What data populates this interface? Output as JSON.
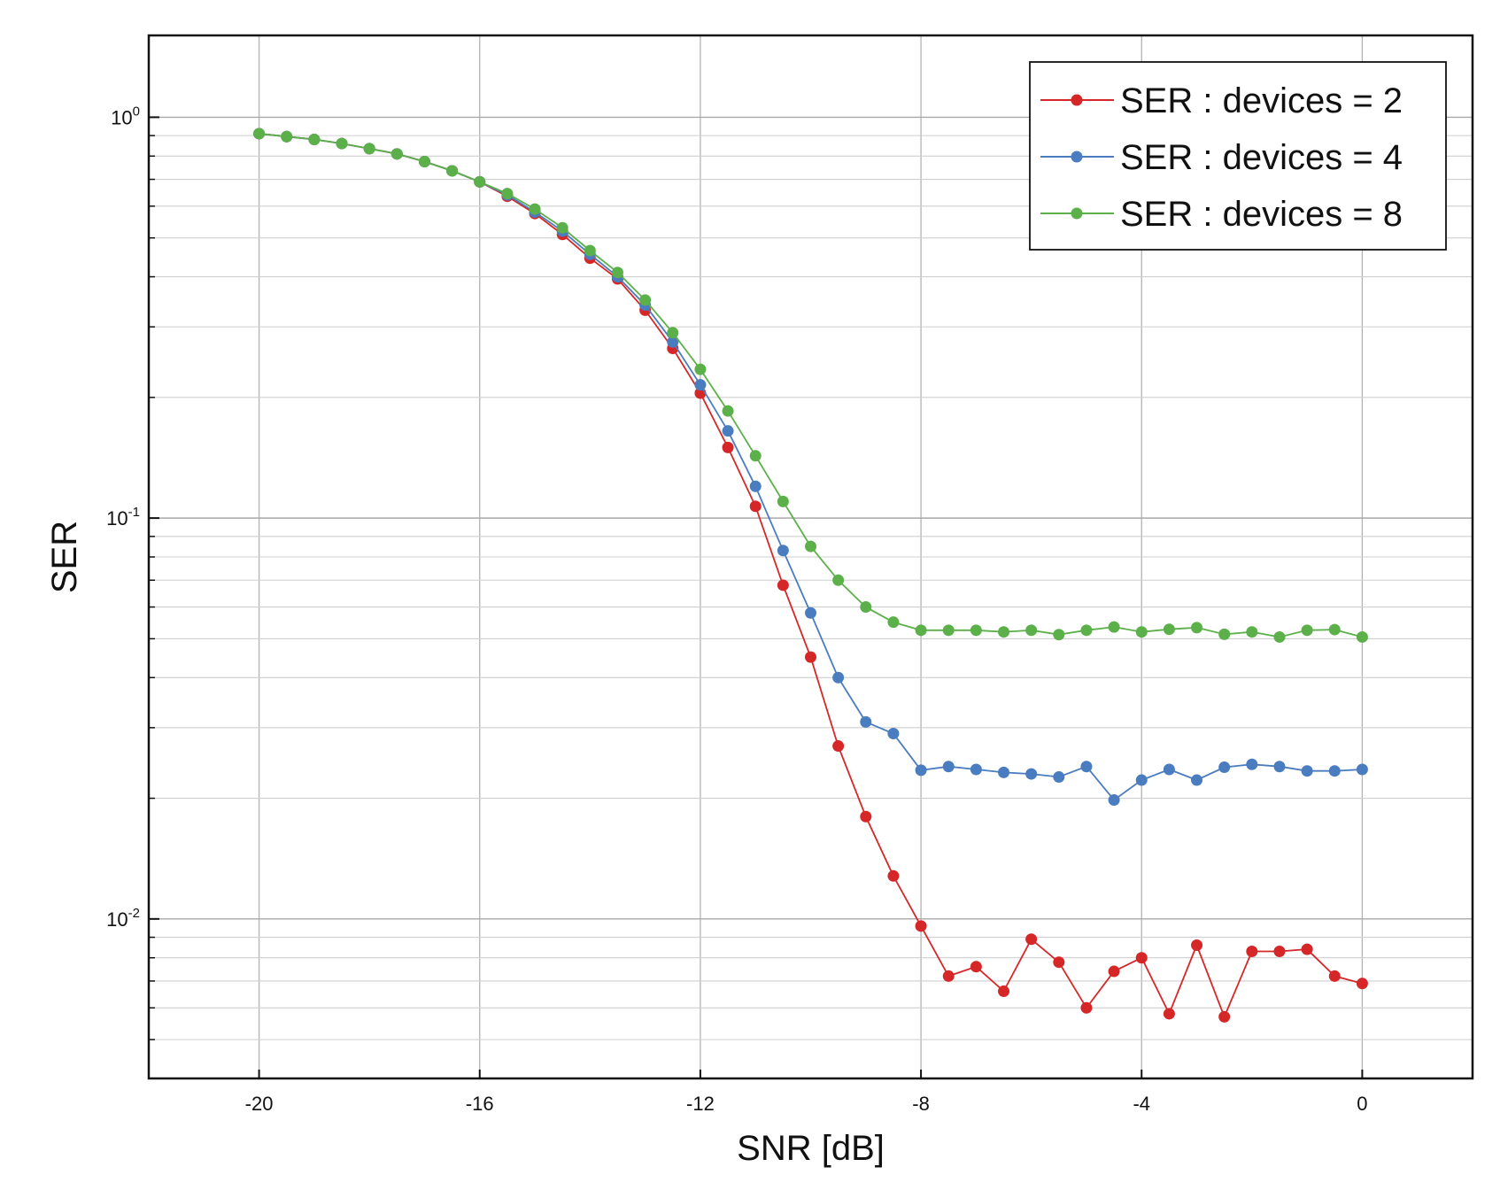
{
  "chart_data": {
    "type": "line",
    "title": "",
    "xlabel": "SNR [dB]",
    "ylabel": "SER",
    "yscale": "log",
    "xlim": [
      -22,
      2
    ],
    "ylim": [
      0.004,
      1.6
    ],
    "grid": true,
    "legend_position": "top-right",
    "x_ticks": [
      -20,
      -16,
      -12,
      -8,
      -4,
      0
    ],
    "x_tick_labels": [
      "-20",
      "-16",
      "-12",
      "-8",
      "-4",
      "0"
    ],
    "y_ticks": [
      1,
      0.1,
      0.01
    ],
    "y_tick_labels": [
      {
        "base": "10",
        "exp": "0"
      },
      {
        "base": "10",
        "exp": "-1"
      },
      {
        "base": "10",
        "exp": "-2"
      }
    ],
    "x": [
      -20,
      -19.5,
      -19,
      -18.5,
      -18,
      -17.5,
      -17,
      -16.5,
      -16,
      -15.5,
      -15,
      -14.5,
      -14,
      -13.5,
      -13,
      -12.5,
      -12,
      -11.5,
      -11,
      -10.5,
      -10,
      -9.5,
      -9,
      -8.5,
      -8,
      -7.5,
      -7,
      -6.5,
      -6,
      -5.5,
      -5,
      -4.5,
      -4,
      -3.5,
      -3,
      -2.5,
      -2,
      -1.5,
      -1,
      -0.5,
      0
    ],
    "series": [
      {
        "name": "SER : devices = 2",
        "color": "#d62728",
        "values": [
          0.91,
          0.895,
          0.88,
          0.86,
          0.835,
          0.81,
          0.775,
          0.735,
          0.69,
          0.635,
          0.575,
          0.51,
          0.445,
          0.395,
          0.33,
          0.265,
          0.205,
          0.15,
          0.107,
          0.068,
          0.045,
          0.027,
          0.018,
          0.0128,
          0.0096,
          0.0072,
          0.0076,
          0.0066,
          0.0089,
          0.0078,
          0.006,
          0.0074,
          0.008,
          0.0058,
          0.0086,
          0.0057,
          0.0083,
          0.0083,
          0.0084,
          0.0072,
          0.0069
        ]
      },
      {
        "name": "SER : devices = 4",
        "color": "#4a7cc0",
        "values": [
          0.91,
          0.895,
          0.88,
          0.86,
          0.835,
          0.81,
          0.775,
          0.735,
          0.69,
          0.64,
          0.58,
          0.52,
          0.455,
          0.4,
          0.34,
          0.275,
          0.215,
          0.165,
          0.12,
          0.083,
          0.058,
          0.04,
          0.031,
          0.029,
          0.0235,
          0.024,
          0.0236,
          0.0232,
          0.023,
          0.0226,
          0.024,
          0.0198,
          0.0222,
          0.0236,
          0.0222,
          0.0239,
          0.0243,
          0.024,
          0.0234,
          0.0234,
          0.0236
        ]
      },
      {
        "name": "SER : devices = 8",
        "color": "#5cb04a",
        "values": [
          0.91,
          0.895,
          0.88,
          0.86,
          0.835,
          0.81,
          0.775,
          0.735,
          0.69,
          0.645,
          0.59,
          0.53,
          0.465,
          0.41,
          0.35,
          0.29,
          0.235,
          0.185,
          0.143,
          0.11,
          0.085,
          0.07,
          0.06,
          0.055,
          0.0525,
          0.0525,
          0.0525,
          0.052,
          0.0525,
          0.0512,
          0.0525,
          0.0535,
          0.052,
          0.0528,
          0.0533,
          0.0513,
          0.052,
          0.0505,
          0.0525,
          0.0527,
          0.0505
        ]
      }
    ]
  }
}
